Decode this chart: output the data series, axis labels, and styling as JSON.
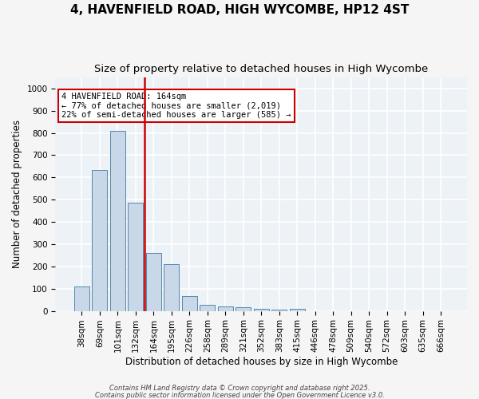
{
  "title": "4, HAVENFIELD ROAD, HIGH WYCOMBE, HP12 4ST",
  "subtitle": "Size of property relative to detached houses in High Wycombe",
  "xlabel": "Distribution of detached houses by size in High Wycombe",
  "ylabel": "Number of detached properties",
  "bar_color": "#c8d8e8",
  "bar_edge_color": "#5588aa",
  "background_color": "#edf2f7",
  "grid_color": "#ffffff",
  "annotation_text": "4 HAVENFIELD ROAD: 164sqm\n← 77% of detached houses are smaller (2,019)\n22% of semi-detached houses are larger (585) →",
  "annotation_box_color": "#ffffff",
  "annotation_border_color": "#cc0000",
  "red_line_index": 3.5,
  "categories": [
    "38sqm",
    "69sqm",
    "101sqm",
    "132sqm",
    "164sqm",
    "195sqm",
    "226sqm",
    "258sqm",
    "289sqm",
    "321sqm",
    "352sqm",
    "383sqm",
    "415sqm",
    "446sqm",
    "478sqm",
    "509sqm",
    "540sqm",
    "572sqm",
    "603sqm",
    "635sqm",
    "666sqm"
  ],
  "values": [
    110,
    635,
    810,
    485,
    260,
    210,
    65,
    28,
    20,
    15,
    10,
    5,
    10,
    0,
    0,
    0,
    0,
    0,
    0,
    0,
    0
  ],
  "ylim": [
    0,
    1050
  ],
  "yticks": [
    0,
    100,
    200,
    300,
    400,
    500,
    600,
    700,
    800,
    900,
    1000
  ],
  "footnote_line1": "Contains HM Land Registry data © Crown copyright and database right 2025.",
  "footnote_line2": "Contains public sector information licensed under the Open Government Licence v3.0.",
  "title_fontsize": 11,
  "subtitle_fontsize": 9.5,
  "tick_fontsize": 7.5,
  "ylabel_fontsize": 8.5,
  "xlabel_fontsize": 8.5,
  "annotation_fontsize": 7.5
}
